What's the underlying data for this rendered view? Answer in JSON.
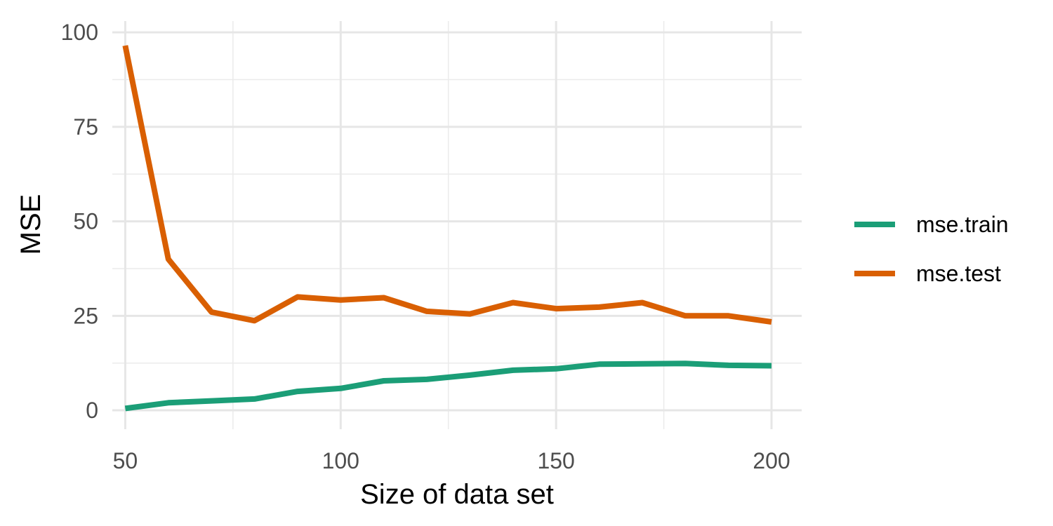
{
  "chart_data": {
    "type": "line",
    "title": "",
    "xlabel": "Size of data set",
    "ylabel": "MSE",
    "xlim": [
      47,
      207
    ],
    "ylim": [
      -5,
      103
    ],
    "x_ticks": [
      50,
      100,
      150,
      200
    ],
    "x_tick_labels": [
      "50",
      "100",
      "150",
      "200"
    ],
    "x_minor_ticks": [
      75,
      125,
      175
    ],
    "y_ticks": [
      0,
      25,
      50,
      75,
      100
    ],
    "y_tick_labels": [
      "0",
      "25",
      "50",
      "75",
      "100"
    ],
    "y_minor_ticks": [
      12.5,
      37.5,
      62.5,
      87.5
    ],
    "grid": true,
    "legend_position": "right",
    "x": [
      50,
      60,
      70,
      80,
      90,
      100,
      110,
      120,
      130,
      140,
      150,
      160,
      170,
      180,
      190,
      200
    ],
    "series": [
      {
        "name": "mse.train",
        "color": "#1b9e77",
        "values": [
          0.5,
          2.0,
          2.5,
          3.0,
          5.0,
          5.8,
          7.8,
          8.2,
          9.3,
          10.6,
          11.0,
          12.2,
          12.3,
          12.4,
          11.9,
          11.8
        ]
      },
      {
        "name": "mse.test",
        "color": "#d95f02",
        "values": [
          96.5,
          40.0,
          26.0,
          23.7,
          30.0,
          29.2,
          29.8,
          26.2,
          25.5,
          28.5,
          26.9,
          27.3,
          28.5,
          25.0,
          25.0,
          23.4
        ]
      }
    ]
  }
}
